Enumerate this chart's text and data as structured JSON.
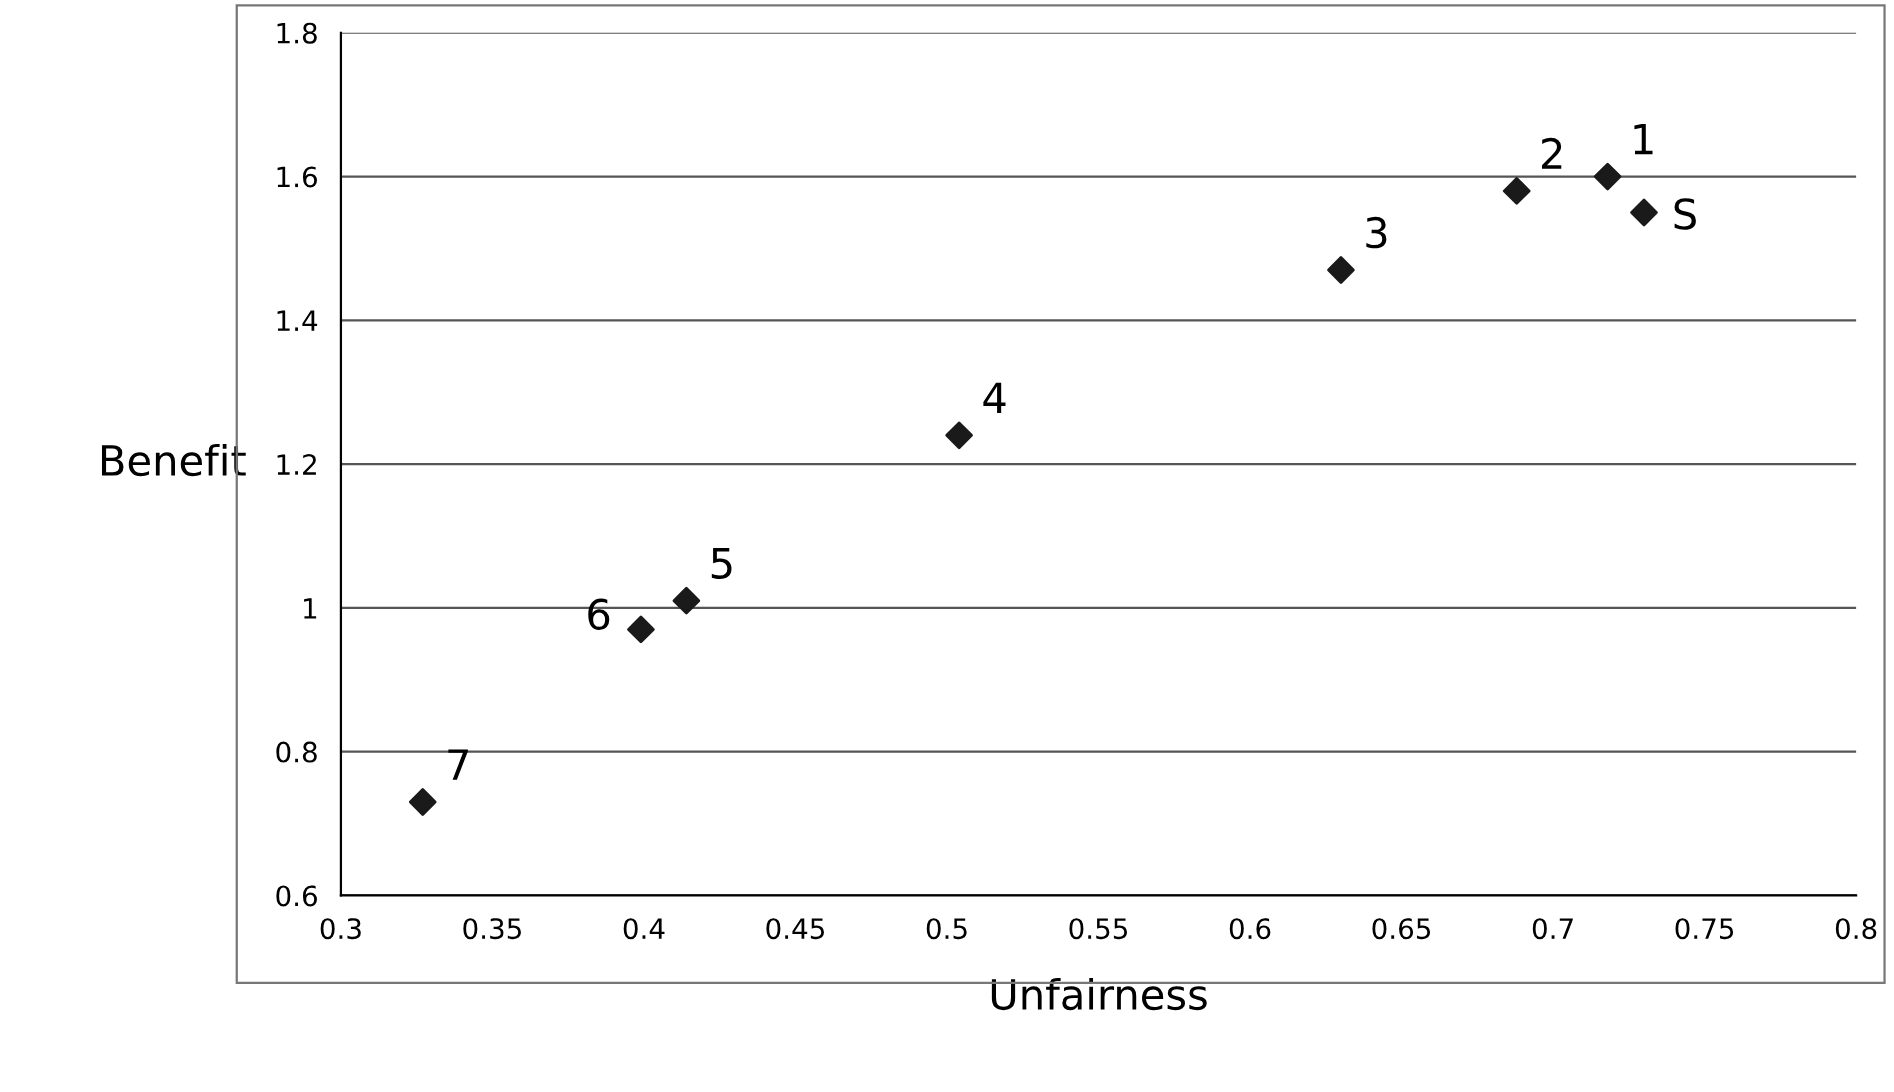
{
  "chart_data": {
    "type": "scatter",
    "xlabel": "Unfairness",
    "ylabel": "Benefit",
    "x": [
      0.718,
      0.688,
      0.63,
      0.504,
      0.414,
      0.399,
      0.327,
      0.73
    ],
    "values": [
      1.6,
      1.58,
      1.47,
      1.24,
      1.01,
      0.97,
      0.73,
      1.55
    ],
    "color": "#1a1a1a",
    "marker": "diamond",
    "grid": "y",
    "legend": false,
    "xlim": [
      0.3,
      0.8
    ],
    "xticks": [
      0.3,
      0.35,
      0.4,
      0.45,
      0.5,
      0.55,
      0.6,
      0.65,
      0.7,
      0.75,
      0.8
    ],
    "ylim": [
      0.6,
      1.8
    ],
    "yticks": [
      0.6,
      0.8,
      1,
      1.2,
      1.4,
      1.6,
      1.8
    ],
    "annotations": [
      {
        "text": "1",
        "x": 0.718,
        "y": 1.6
      },
      {
        "text": "2",
        "x": 0.688,
        "y": 1.58
      },
      {
        "text": "3",
        "x": 0.63,
        "y": 1.47
      },
      {
        "text": "4",
        "x": 0.504,
        "y": 1.24
      },
      {
        "text": "5",
        "x": 0.414,
        "y": 1.01
      },
      {
        "text": "6",
        "x": 0.399,
        "y": 0.97
      },
      {
        "text": "7",
        "x": 0.327,
        "y": 0.73
      },
      {
        "text": "S",
        "x": 0.73,
        "y": 1.55
      }
    ]
  }
}
